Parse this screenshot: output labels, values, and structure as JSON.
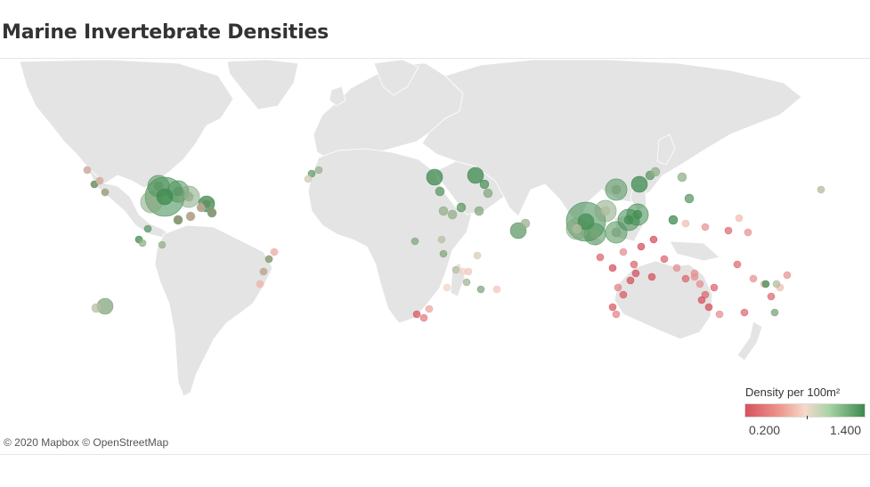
{
  "title": "Marine Invertebrate Densities",
  "credit": "© 2020 Mapbox © OpenStreetMap",
  "legend": {
    "title": "Density per 100m²",
    "min_label": "0.200",
    "max_label": "1.400",
    "colors": {
      "low": "#d6515d",
      "mid": "#f6d9cc",
      "high": "#3d8a4f"
    }
  },
  "colors": {
    "land": "#e4e4e4",
    "ocean": "#ffffff",
    "border": "#ffffff"
  },
  "points": [
    {
      "region": "gulf-mexico",
      "d": 1.35,
      "s": 3
    },
    {
      "region": "gulf-mexico",
      "d": 1.3,
      "s": 2
    },
    {
      "region": "caribbean",
      "d": 1.25,
      "s": 2
    },
    {
      "region": "caribbean",
      "d": 0.5,
      "s": 1
    },
    {
      "region": "caribbean",
      "d": 0.3,
      "s": 1
    },
    {
      "region": "caribbean",
      "d": 1.2,
      "s": 1
    },
    {
      "region": "mexico-pacific",
      "d": 0.35,
      "s": 1
    },
    {
      "region": "mexico-pacific",
      "d": 1.1,
      "s": 1
    },
    {
      "region": "panama",
      "d": 1.3,
      "s": 1
    },
    {
      "region": "galapagos",
      "d": 1.0,
      "s": 2
    },
    {
      "region": "brazil",
      "d": 0.3,
      "s": 1
    },
    {
      "region": "brazil",
      "d": 1.0,
      "s": 1
    },
    {
      "region": "canary",
      "d": 1.1,
      "s": 1
    },
    {
      "region": "red-sea",
      "d": 1.3,
      "s": 2
    },
    {
      "region": "persian-gulf",
      "d": 1.35,
      "s": 2
    },
    {
      "region": "india",
      "d": 1.1,
      "s": 2
    },
    {
      "region": "east-africa",
      "d": 1.0,
      "s": 1
    },
    {
      "region": "madagascar",
      "d": 0.9,
      "s": 1
    },
    {
      "region": "south-africa",
      "d": 0.4,
      "s": 1
    },
    {
      "region": "se-asia",
      "d": 1.35,
      "s": 3
    },
    {
      "region": "se-asia",
      "d": 1.2,
      "s": 2
    },
    {
      "region": "indonesia",
      "d": 0.3,
      "s": 1
    },
    {
      "region": "philippines",
      "d": 1.3,
      "s": 2
    },
    {
      "region": "australia-west",
      "d": 0.25,
      "s": 1
    },
    {
      "region": "australia-east",
      "d": 0.3,
      "s": 1
    },
    {
      "region": "pacific-islands",
      "d": 0.5,
      "s": 1
    },
    {
      "region": "new-caledonia",
      "d": 1.2,
      "s": 1
    }
  ]
}
